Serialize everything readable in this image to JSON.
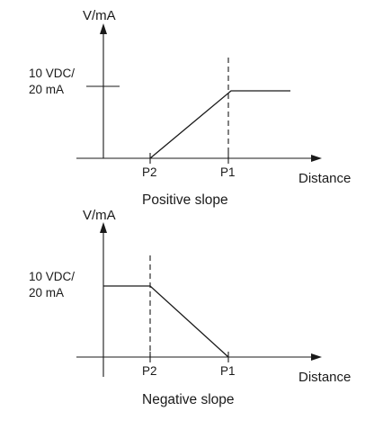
{
  "diagrams": [
    {
      "id": "positive",
      "y_axis_label": "V/mA",
      "level_label_line1": "10 VDC/",
      "level_label_line2": "20 mA",
      "x_axis_label": "Distance",
      "p2_label": "P2",
      "p1_label": "P1",
      "caption": "Positive slope"
    },
    {
      "id": "negative",
      "y_axis_label": "V/mA",
      "level_label_line1": "10 VDC/",
      "level_label_line2": "20 mA",
      "x_axis_label": "Distance",
      "p2_label": "P2",
      "p1_label": "P1",
      "caption": "Negative slope"
    }
  ]
}
